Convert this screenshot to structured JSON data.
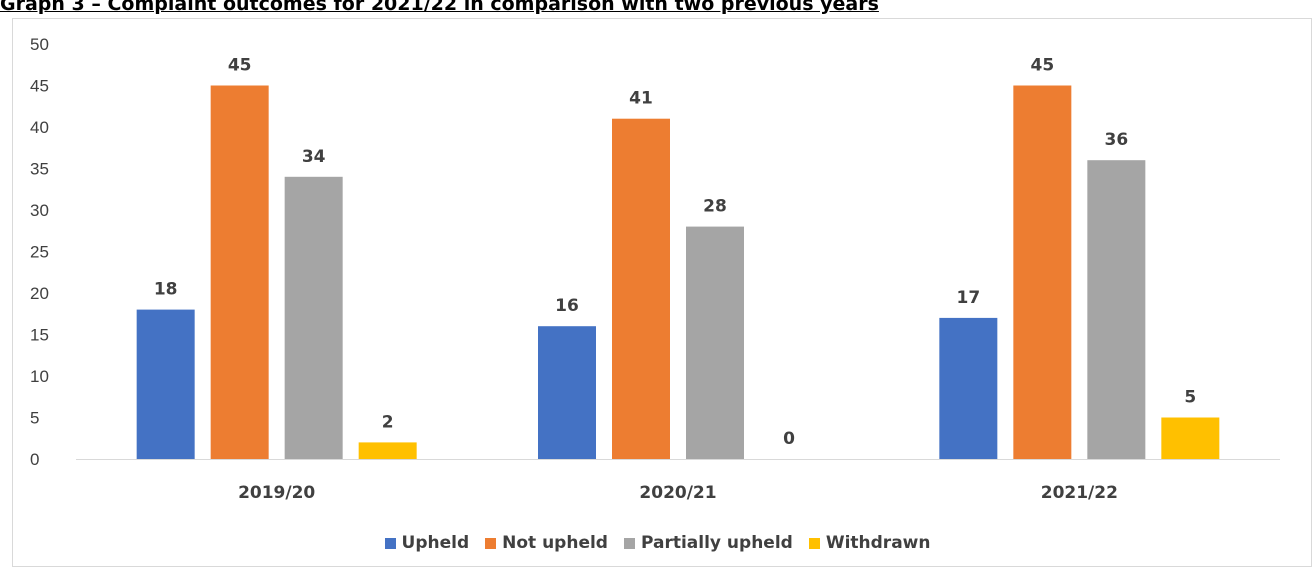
{
  "chart_data": {
    "type": "bar",
    "title": "Graph 3 – Complaint outcomes for 2021/22 in comparison with two previous years",
    "categories": [
      "2019/20",
      "2020/21",
      "2021/22"
    ],
    "series": [
      {
        "name": "Upheld",
        "color": "#4472C4",
        "values": [
          18,
          16,
          17
        ]
      },
      {
        "name": "Not upheld",
        "color": "#ED7D31",
        "values": [
          45,
          41,
          45
        ]
      },
      {
        "name": "Partially upheld",
        "color": "#A5A5A5",
        "values": [
          34,
          28,
          36
        ]
      },
      {
        "name": "Withdrawn",
        "color": "#FFC000",
        "values": [
          2,
          0,
          5
        ]
      }
    ],
    "yticks": [
      0,
      5,
      10,
      15,
      20,
      25,
      30,
      35,
      40,
      45,
      50
    ],
    "ylim": [
      0,
      50
    ],
    "grid": false,
    "legend_position": "bottom",
    "data_labels": true
  }
}
